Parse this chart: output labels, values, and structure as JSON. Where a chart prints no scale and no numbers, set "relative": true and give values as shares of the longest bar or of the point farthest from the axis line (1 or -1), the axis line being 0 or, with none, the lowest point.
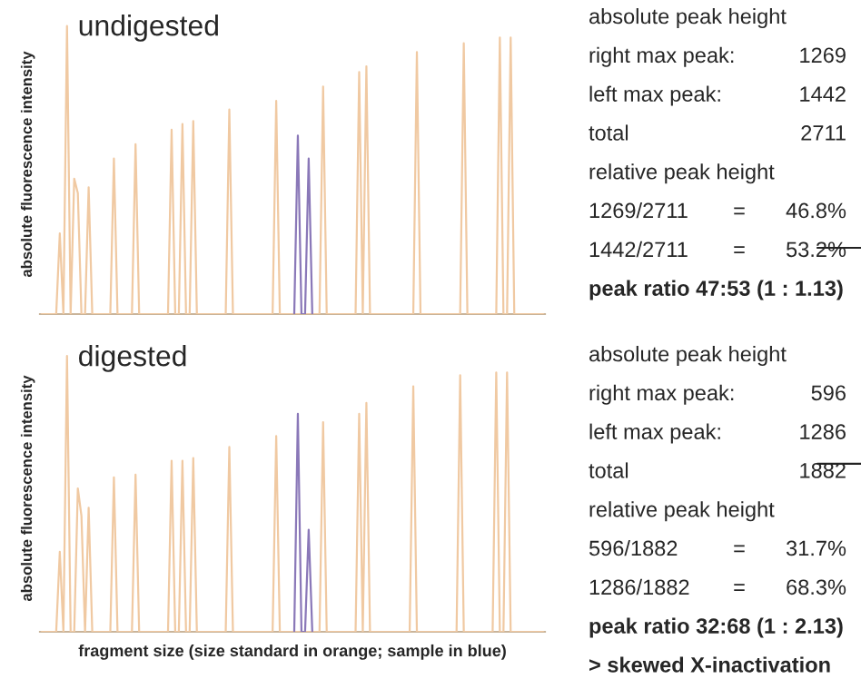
{
  "chart_data": [
    {
      "type": "line",
      "title": "undigested",
      "ylabel": "absolute fluorescence intensity",
      "relative": true,
      "categories": [
        null,
        null,
        null,
        null,
        null,
        null,
        null,
        null,
        null,
        null,
        null,
        null,
        null,
        null,
        null,
        null,
        null,
        null,
        null,
        null,
        null,
        null,
        null,
        null,
        null,
        null,
        null,
        null,
        null,
        null,
        null,
        null,
        null,
        null,
        null,
        null,
        null,
        null,
        null,
        null,
        null,
        null,
        null,
        null,
        null,
        null,
        null,
        null,
        null,
        null,
        null,
        null,
        null,
        null,
        null,
        null,
        null,
        null,
        null,
        null,
        null,
        null,
        null,
        null,
        null,
        null,
        null,
        null,
        null,
        null,
        null,
        null,
        null,
        null,
        null,
        null,
        null,
        null,
        null,
        null,
        null,
        null,
        null,
        null,
        null,
        null,
        null,
        null,
        null,
        null,
        null,
        null,
        null,
        null,
        null,
        null,
        null,
        null,
        null,
        null,
        null,
        null,
        null,
        null,
        null,
        null,
        null,
        null,
        null,
        null,
        null,
        null,
        null,
        null,
        null,
        null,
        null,
        null,
        null,
        null,
        null,
        null,
        null,
        null,
        null,
        null,
        null,
        null,
        null,
        null,
        null,
        null,
        null,
        null,
        null,
        null,
        null,
        null,
        null,
        null
      ],
      "series": [
        {
          "color": "#f0c9a2",
          "values": [
            0,
            0,
            0,
            0,
            0,
            0.28,
            0,
            1,
            0,
            0.47,
            0.42,
            0,
            0,
            0.44,
            0,
            0,
            0,
            0,
            0,
            0,
            0.54,
            0,
            0,
            0,
            0,
            0,
            0.59,
            0,
            0,
            0,
            0,
            0,
            0,
            0,
            0,
            0,
            0.64,
            0,
            0,
            0.66,
            0,
            0,
            0.67,
            0,
            0,
            0,
            0,
            0,
            0,
            0,
            0,
            0,
            0.71,
            0,
            0,
            0,
            0,
            0,
            0,
            0,
            0,
            0,
            0,
            0,
            0,
            0.74,
            0,
            0,
            0,
            0,
            null,
            null,
            null,
            null,
            null,
            null,
            0,
            0,
            0.79,
            0,
            0,
            0,
            0,
            0,
            0,
            0,
            0,
            0,
            0.84,
            0,
            0.86,
            0,
            0,
            0,
            0,
            0,
            0,
            0,
            0,
            0,
            0,
            0,
            0,
            0,
            0.91,
            0,
            0,
            0,
            0,
            0,
            0,
            0,
            0,
            0,
            0,
            0,
            0,
            0.94,
            0,
            0,
            0,
            0,
            0,
            0,
            0,
            0,
            0,
            0.96,
            0,
            0,
            0.96,
            0,
            0,
            0,
            0,
            0,
            0,
            0,
            0,
            0
          ]
        },
        {
          "color": "#8a78b8",
          "values": [
            null,
            null,
            null,
            null,
            null,
            null,
            null,
            null,
            null,
            null,
            null,
            null,
            null,
            null,
            null,
            null,
            null,
            null,
            null,
            null,
            null,
            null,
            null,
            null,
            null,
            null,
            null,
            null,
            null,
            null,
            null,
            null,
            null,
            null,
            null,
            null,
            null,
            null,
            null,
            null,
            null,
            null,
            null,
            null,
            null,
            null,
            null,
            null,
            null,
            null,
            null,
            null,
            null,
            null,
            null,
            null,
            null,
            null,
            null,
            null,
            null,
            null,
            null,
            null,
            null,
            null,
            null,
            null,
            null,
            null,
            0,
            0.62,
            0,
            0,
            0.54,
            0,
            null,
            null,
            null,
            null,
            null,
            null,
            null,
            null,
            null,
            null,
            null,
            null,
            null,
            null,
            null,
            null,
            null,
            null,
            null,
            null,
            null,
            null,
            null,
            null,
            null,
            null,
            null,
            null,
            null,
            null,
            null,
            null,
            null,
            null,
            null,
            null,
            null,
            null,
            null,
            null,
            null,
            null,
            null,
            null,
            null,
            null,
            null,
            null,
            null,
            null,
            null,
            null,
            null,
            null,
            null,
            null,
            null,
            null,
            null,
            null,
            null,
            null,
            null,
            null
          ]
        }
      ]
    },
    {
      "type": "other",
      "title": "absolute peak height",
      "annotations": [
        "right max peak:",
        "1269",
        "left max peak:",
        "1442",
        "total",
        "2711",
        "relative peak height",
        "1269/2711",
        "=",
        "46.8%",
        "1442/2711",
        "=",
        "53.2%",
        "peak ratio 47:53 (1 : 1.13)"
      ]
    },
    {
      "type": "line",
      "title": "digested",
      "ylabel": "absolute fluorescence intensity",
      "xlabel": "fragment size (size standard in orange; sample in blue)",
      "relative": true,
      "categories": [
        null,
        null,
        null,
        null,
        null,
        null,
        null,
        null,
        null,
        null,
        null,
        null,
        null,
        null,
        null,
        null,
        null,
        null,
        null,
        null,
        null,
        null,
        null,
        null,
        null,
        null,
        null,
        null,
        null,
        null,
        null,
        null,
        null,
        null,
        null,
        null,
        null,
        null,
        null,
        null,
        null,
        null,
        null,
        null,
        null,
        null,
        null,
        null,
        null,
        null,
        null,
        null,
        null,
        null,
        null,
        null,
        null,
        null,
        null,
        null,
        null,
        null,
        null,
        null,
        null,
        null,
        null,
        null,
        null,
        null,
        null,
        null,
        null,
        null,
        null,
        null,
        null,
        null,
        null,
        null,
        null,
        null,
        null,
        null,
        null,
        null,
        null,
        null,
        null,
        null,
        null,
        null,
        null,
        null,
        null,
        null,
        null,
        null,
        null,
        null,
        null,
        null,
        null,
        null,
        null,
        null,
        null,
        null,
        null,
        null,
        null,
        null,
        null,
        null,
        null,
        null,
        null,
        null,
        null,
        null,
        null,
        null,
        null,
        null,
        null,
        null,
        null,
        null,
        null,
        null,
        null,
        null,
        null,
        null,
        null,
        null,
        null,
        null,
        null,
        null
      ],
      "series": [
        {
          "color": "#f0c9a2",
          "values": [
            0,
            0,
            0,
            0,
            0,
            0.29,
            0,
            1,
            0,
            0,
            0.52,
            0.42,
            0,
            0.45,
            0,
            0,
            0,
            0,
            0,
            0,
            0.56,
            0,
            0,
            0,
            0,
            0,
            0.57,
            0,
            0,
            0,
            0,
            0,
            0,
            0,
            0,
            0,
            0.62,
            0,
            0,
            0.62,
            0,
            0,
            0.63,
            0,
            0,
            0,
            0,
            0,
            0,
            0,
            0,
            0,
            0.67,
            0,
            0,
            0,
            0,
            0,
            0,
            0,
            0,
            0,
            0,
            0,
            0,
            0.71,
            0,
            0,
            0,
            0,
            null,
            null,
            null,
            null,
            null,
            null,
            0,
            0,
            0.76,
            0,
            0,
            0,
            0,
            0,
            0,
            0,
            0,
            0,
            0.79,
            0,
            0.83,
            0,
            0,
            0,
            0,
            0,
            0,
            0,
            0,
            0,
            0,
            0,
            0,
            0.89,
            0,
            0,
            0,
            0,
            0,
            0,
            0,
            0,
            0,
            0,
            0,
            0,
            0.93,
            0,
            0,
            0,
            0,
            0,
            0,
            0,
            0,
            0,
            0.94,
            0,
            0,
            0.94,
            0,
            0,
            0,
            0,
            0,
            0,
            0,
            0,
            0,
            0
          ]
        },
        {
          "color": "#8a78b8",
          "values": [
            null,
            null,
            null,
            null,
            null,
            null,
            null,
            null,
            null,
            null,
            null,
            null,
            null,
            null,
            null,
            null,
            null,
            null,
            null,
            null,
            null,
            null,
            null,
            null,
            null,
            null,
            null,
            null,
            null,
            null,
            null,
            null,
            null,
            null,
            null,
            null,
            null,
            null,
            null,
            null,
            null,
            null,
            null,
            null,
            null,
            null,
            null,
            null,
            null,
            null,
            null,
            null,
            null,
            null,
            null,
            null,
            null,
            null,
            null,
            null,
            null,
            null,
            null,
            null,
            null,
            null,
            null,
            null,
            null,
            null,
            0,
            0.79,
            0,
            0,
            0.37,
            0,
            null,
            null,
            null,
            null,
            null,
            null,
            null,
            null,
            null,
            null,
            null,
            null,
            null,
            null,
            null,
            null,
            null,
            null,
            null,
            null,
            null,
            null,
            null,
            null,
            null,
            null,
            null,
            null,
            null,
            null,
            null,
            null,
            null,
            null,
            null,
            null,
            null,
            null,
            null,
            null,
            null,
            null,
            null,
            null,
            null,
            null,
            null,
            null,
            null,
            null,
            null,
            null,
            null,
            null,
            null,
            null,
            null,
            null,
            null,
            null,
            null,
            null,
            null,
            null
          ]
        }
      ]
    },
    {
      "type": "other",
      "title": "absolute peak height",
      "annotations": [
        "right max peak:",
        "596",
        "left max peak:",
        "1286",
        "total",
        "1882",
        "relative peak height",
        "596/1882",
        "=",
        "31.7%",
        "1286/1882",
        "=",
        "68.3%",
        "peak ratio 32:68 (1 : 2.13)",
        "> skewed X-inactivation"
      ]
    }
  ]
}
